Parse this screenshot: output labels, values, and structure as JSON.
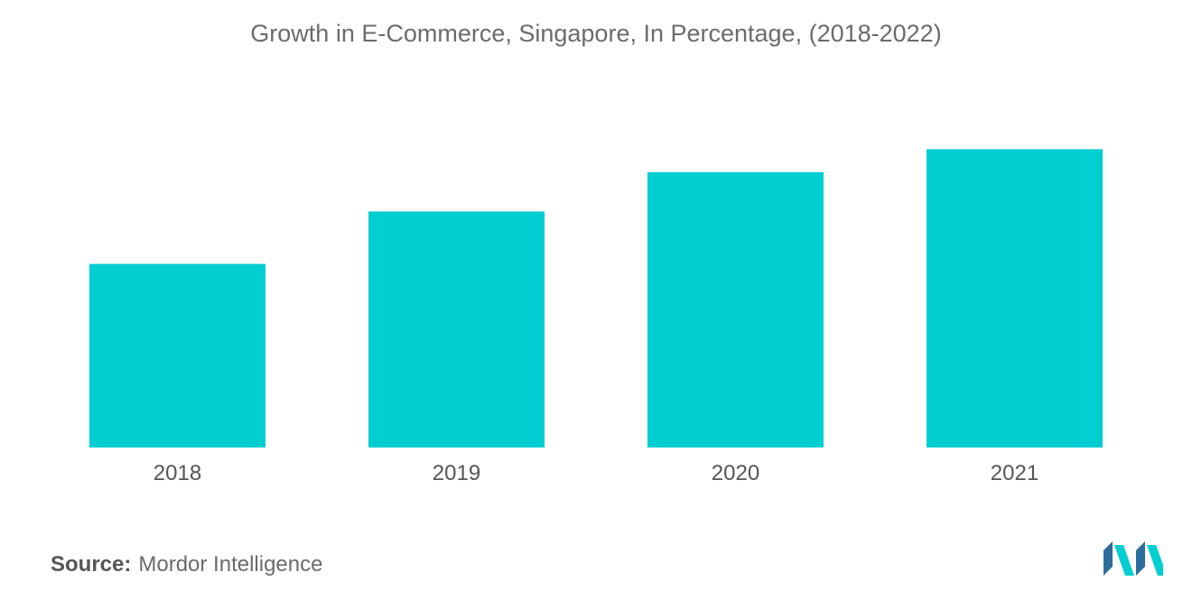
{
  "chart_data": {
    "type": "bar",
    "title": "Growth in E-Commerce, Singapore, In Percentage, (2018-2022)",
    "categories": [
      "2018",
      "2019",
      "2020",
      "2021"
    ],
    "values": [
      5.6,
      7.2,
      8.4,
      9.1
    ],
    "xlabel": "",
    "ylabel": "",
    "ylim": [
      0,
      12
    ],
    "grid": false,
    "bar_color": "#00CED1"
  },
  "source": {
    "label": "Source:",
    "text": "Mordor Intelligence"
  },
  "logo": {
    "icon": "mordor-intelligence-logo-icon",
    "colors": [
      "#2C6E9B",
      "#00CED1"
    ]
  }
}
